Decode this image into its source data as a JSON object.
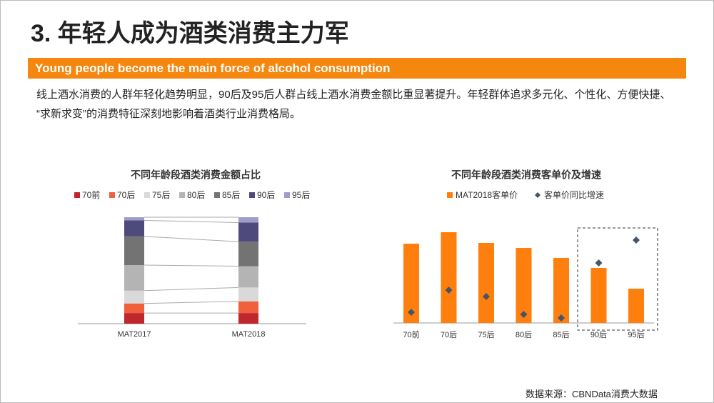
{
  "title": "3. 年轻人成为酒类消费主力军",
  "subtitle": "Young people become the main force of alcohol consumption",
  "body": "线上酒水消费的人群年轻化趋势明显，90后及95后人群占线上酒水消费金额比重显著提升。年轻群体追求多元化、个性化、方便快捷、 “求新求变”的消费特征深刻地影响着酒类行业消费格局。",
  "source": "数据来源：CBNData消费大数据",
  "chart_data": [
    {
      "type": "stacked_bar",
      "title": "不同年龄段酒类消费金额占比",
      "categories": [
        "MAT2017",
        "MAT2018"
      ],
      "series": [
        {
          "name": "70前",
          "color": "#c0262d",
          "values": [
            10,
            10
          ]
        },
        {
          "name": "70后",
          "color": "#f0603c",
          "values": [
            9,
            11
          ]
        },
        {
          "name": "75后",
          "color": "#d9d9d9",
          "values": [
            12,
            13
          ]
        },
        {
          "name": "80后",
          "color": "#b4b4b4",
          "values": [
            24,
            20
          ]
        },
        {
          "name": "85后",
          "color": "#737373",
          "values": [
            27,
            23
          ]
        },
        {
          "name": "90后",
          "color": "#4f4a7c",
          "values": [
            15,
            18
          ]
        },
        {
          "name": "95后",
          "color": "#a09bc9",
          "values": [
            3,
            5
          ]
        }
      ]
    },
    {
      "type": "bar_scatter",
      "title": "不同年龄段酒类消费客单价及增速",
      "categories": [
        "70前",
        "70后",
        "75后",
        "80后",
        "85后",
        "90后",
        "95后"
      ],
      "series": [
        {
          "name": "MAT2018客单价",
          "color": "#ff7f0e",
          "values": [
            111,
            127,
            112,
            105,
            91,
            77,
            48
          ]
        },
        {
          "name": "客单价同比增速",
          "color": "#44546a",
          "values": [
            15,
            46,
            37,
            12,
            7,
            84,
            116
          ]
        }
      ]
    }
  ]
}
